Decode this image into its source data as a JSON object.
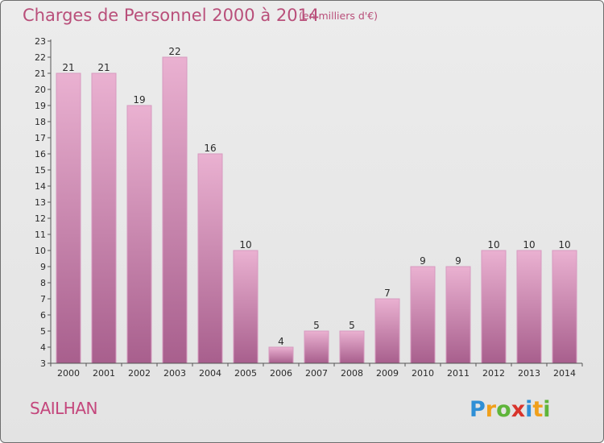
{
  "header": {
    "title": "Charges de Personnel 2000 à 2014",
    "unit": "(en milliers d'€)"
  },
  "footer": {
    "place": "SAILHAN",
    "logo": "Proxiti"
  },
  "colors": {
    "title": "#b94f7a",
    "bar_top": "#eab1d1",
    "bar_bottom": "#a85f8d",
    "axis": "#555555"
  },
  "chart_data": {
    "type": "bar",
    "title": "Charges de Personnel 2000 à 2014",
    "subtitle": "(en milliers d'€)",
    "xlabel": "",
    "ylabel": "",
    "ylim": [
      3,
      23
    ],
    "grid": false,
    "categories": [
      "2000",
      "2001",
      "2002",
      "2003",
      "2004",
      "2005",
      "2006",
      "2007",
      "2008",
      "2009",
      "2010",
      "2011",
      "2012",
      "2013",
      "2014"
    ],
    "values": [
      21,
      21,
      19,
      22,
      16,
      10,
      4,
      5,
      5,
      7,
      9,
      9,
      10,
      10,
      10
    ],
    "y_ticks": [
      3,
      4,
      5,
      6,
      7,
      8,
      9,
      10,
      11,
      12,
      13,
      14,
      15,
      16,
      17,
      18,
      19,
      20,
      21,
      22,
      23
    ]
  }
}
